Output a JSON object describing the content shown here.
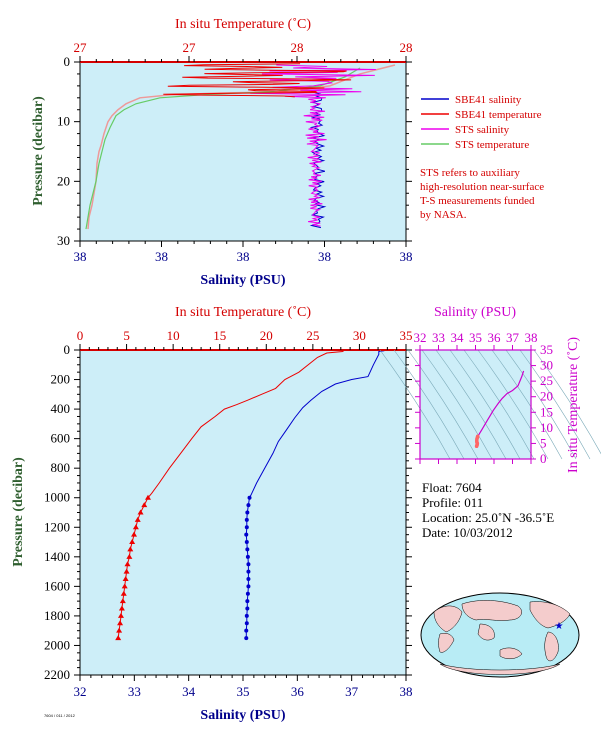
{
  "top_chart": {
    "top_axis_title": "In situ Temperature (˚C)",
    "top_ticks": [
      "27",
      "27",
      "28",
      "28"
    ],
    "bottom_axis_title": "Salinity (PSU)",
    "bottom_ticks": [
      "38",
      "38",
      "38",
      "38",
      "38"
    ],
    "y_axis_title": "Pressure (decibar)",
    "y_ticks": [
      "0",
      "10",
      "20",
      "30"
    ]
  },
  "legend": {
    "items": [
      {
        "label": "SBE41 salinity",
        "color": "#0000cc"
      },
      {
        "label": "SBE41 temperature",
        "color": "#ee0000"
      },
      {
        "label": "STS salinity",
        "color": "#ee00ee"
      },
      {
        "label": "STS temperature",
        "color": "#66cc66"
      }
    ],
    "note": [
      "STS refers to auxiliary",
      "high-resolution near-surface",
      "T-S measurements funded",
      "by NASA."
    ]
  },
  "main_chart": {
    "top_axis_title": "In situ Temperature (˚C)",
    "top_ticks": [
      "0",
      "5",
      "10",
      "15",
      "20",
      "25",
      "30",
      "35"
    ],
    "bottom_axis_title": "Salinity (PSU)",
    "bottom_ticks": [
      "32",
      "33",
      "34",
      "35",
      "36",
      "37",
      "38"
    ],
    "y_axis_title": "Pressure (decibar)",
    "y_ticks": [
      "0",
      "200",
      "400",
      "600",
      "800",
      "1000",
      "1200",
      "1400",
      "1600",
      "1800",
      "2000",
      "2200"
    ]
  },
  "ts_chart": {
    "top_axis_title": "Salinity (PSU)",
    "top_ticks": [
      "32",
      "33",
      "34",
      "35",
      "36",
      "37",
      "38"
    ],
    "right_axis_title": "In situ Temperature (˚C)",
    "right_ticks": [
      "0",
      "5",
      "10",
      "15",
      "20",
      "25",
      "30",
      "35"
    ]
  },
  "float_info": {
    "float": "Float: 7604",
    "profile": "Profile: 011",
    "location": "Location: 25.0˚N -36.5˚E",
    "date": "Date: 10/03/2012"
  },
  "footer_tag": "7604 / 011 / 2012",
  "colors": {
    "plot_bg": "#cdeef8",
    "salinity": "#0000cc",
    "temperature": "#ee0000",
    "sts_salinity": "#ee00ee",
    "sts_temperature": "#66cc66",
    "ts_curve": "#cc00cc"
  },
  "chart_data": [
    {
      "type": "line",
      "title": "",
      "xlabel": "Salinity (PSU)",
      "x2label": "In situ Temperature (˚C)",
      "ylabel": "Pressure (decibar)",
      "ylim": [
        0,
        2200
      ],
      "xlim": [
        32,
        38
      ],
      "x2lim": [
        0,
        35
      ],
      "series": [
        {
          "name": "Salinity",
          "axis": "bottom",
          "points": [
            [
              37.6,
              5
            ],
            [
              37.5,
              10
            ],
            [
              37.5,
              30
            ],
            [
              37.4,
              100
            ],
            [
              37.3,
              180
            ],
            [
              37.0,
              200
            ],
            [
              36.7,
              230
            ],
            [
              36.45,
              280
            ],
            [
              36.25,
              340
            ],
            [
              36.1,
              390
            ],
            [
              35.95,
              460
            ],
            [
              35.8,
              540
            ],
            [
              35.65,
              620
            ],
            [
              35.55,
              700
            ],
            [
              35.4,
              800
            ],
            [
              35.25,
              900
            ],
            [
              35.15,
              980
            ],
            [
              35.12,
              1000
            ],
            [
              35.1,
              1050
            ],
            [
              35.08,
              1100
            ],
            [
              35.07,
              1150
            ],
            [
              35.07,
              1200
            ],
            [
              35.06,
              1250
            ],
            [
              35.07,
              1300
            ],
            [
              35.08,
              1350
            ],
            [
              35.09,
              1400
            ],
            [
              35.1,
              1450
            ],
            [
              35.1,
              1500
            ],
            [
              35.1,
              1550
            ],
            [
              35.1,
              1600
            ],
            [
              35.09,
              1650
            ],
            [
              35.08,
              1700
            ],
            [
              35.08,
              1750
            ],
            [
              35.07,
              1800
            ],
            [
              35.07,
              1850
            ],
            [
              35.06,
              1900
            ],
            [
              35.06,
              1950
            ]
          ]
        },
        {
          "name": "Temperature",
          "axis": "top",
          "points": [
            [
              28.3,
              5
            ],
            [
              28.2,
              10
            ],
            [
              26.5,
              20
            ],
            [
              25.5,
              50
            ],
            [
              23.5,
              150
            ],
            [
              22.0,
              200
            ],
            [
              21.0,
              260
            ],
            [
              19.5,
              300
            ],
            [
              18.0,
              340
            ],
            [
              16.8,
              370
            ],
            [
              15.5,
              400
            ],
            [
              14.5,
              450
            ],
            [
              13.0,
              520
            ],
            [
              12.0,
              600
            ],
            [
              10.8,
              700
            ],
            [
              9.6,
              800
            ],
            [
              8.5,
              900
            ],
            [
              7.7,
              970
            ],
            [
              7.3,
              1000
            ],
            [
              6.9,
              1050
            ],
            [
              6.5,
              1100
            ],
            [
              6.2,
              1150
            ],
            [
              6.0,
              1200
            ],
            [
              5.8,
              1250
            ],
            [
              5.6,
              1300
            ],
            [
              5.4,
              1350
            ],
            [
              5.3,
              1400
            ],
            [
              5.1,
              1450
            ],
            [
              5.0,
              1500
            ],
            [
              4.9,
              1550
            ],
            [
              4.8,
              1600
            ],
            [
              4.7,
              1650
            ],
            [
              4.6,
              1700
            ],
            [
              4.5,
              1750
            ],
            [
              4.4,
              1800
            ],
            [
              4.3,
              1850
            ],
            [
              4.2,
              1900
            ],
            [
              4.1,
              1950
            ]
          ]
        }
      ]
    },
    {
      "type": "line",
      "title": "",
      "xlabel": "Salinity (PSU)",
      "x2label": "In situ Temperature (˚C)",
      "ylabel": "Pressure (decibar)",
      "ylim": [
        0,
        30
      ],
      "series": [
        {
          "name": "SBE41 salinity",
          "values_depth": [
            4,
            5,
            6,
            8,
            10,
            12,
            15,
            18,
            20,
            22,
            24,
            26,
            28
          ]
        },
        {
          "name": "SBE41 temperature",
          "values_depth": [
            4,
            5,
            6,
            8,
            10,
            12,
            15,
            18,
            20,
            22,
            24,
            26,
            28
          ]
        },
        {
          "name": "STS salinity",
          "values_depth": [
            1,
            2,
            3,
            4,
            6,
            8,
            10,
            14,
            18,
            22,
            26,
            28
          ]
        },
        {
          "name": "STS temperature",
          "values_depth": [
            1,
            2,
            3,
            4,
            6,
            8,
            10,
            14,
            18,
            22,
            26,
            28
          ]
        }
      ]
    },
    {
      "type": "scatter",
      "title": "",
      "xlabel": "Salinity (PSU)",
      "ylabel": "In situ Temperature (˚C)",
      "xlim": [
        32,
        38
      ],
      "ylim": [
        0,
        35
      ],
      "series": [
        {
          "name": "",
          "points": [
            [
              37.6,
              28.3
            ],
            [
              37.5,
              26.5
            ],
            [
              37.3,
              23.5
            ],
            [
              37.0,
              22.0
            ],
            [
              36.7,
              21.0
            ],
            [
              36.45,
              19.5
            ],
            [
              36.25,
              18.0
            ],
            [
              36.1,
              16.8
            ],
            [
              35.95,
              15.5
            ],
            [
              35.8,
              14.0
            ],
            [
              35.65,
              12.5
            ],
            [
              35.5,
              11.0
            ],
            [
              35.35,
              9.5
            ],
            [
              35.2,
              8.0
            ],
            [
              35.12,
              7.3
            ],
            [
              35.1,
              6.9
            ],
            [
              35.08,
              6.5
            ],
            [
              35.07,
              6.0
            ],
            [
              35.07,
              5.6
            ],
            [
              35.08,
              5.3
            ],
            [
              35.1,
              5.0
            ],
            [
              35.09,
              4.7
            ],
            [
              35.08,
              4.4
            ],
            [
              35.06,
              4.1
            ]
          ]
        }
      ]
    }
  ]
}
